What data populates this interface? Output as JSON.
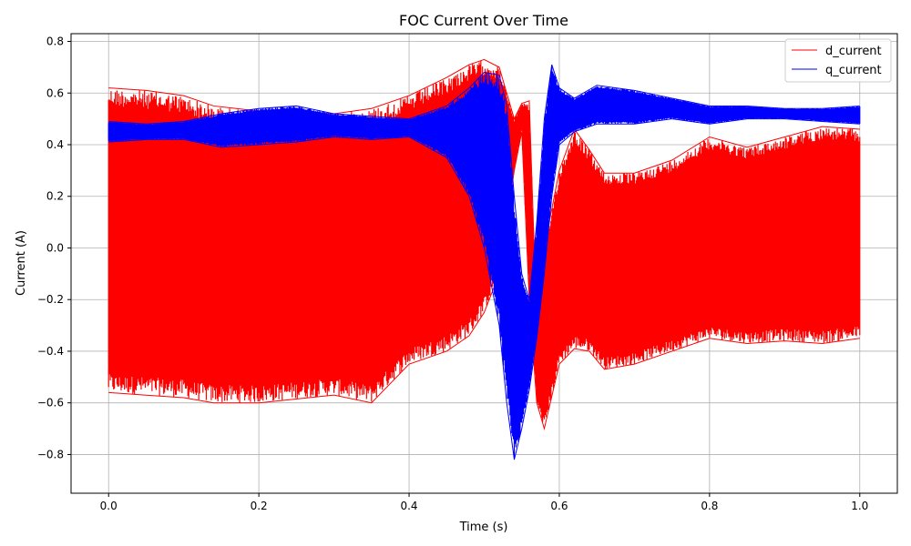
{
  "chart_data": {
    "type": "line",
    "title": "FOC Current Over Time",
    "xlabel": "Time (s)",
    "ylabel": "Current (A)",
    "xlim": [
      -0.05,
      1.05
    ],
    "ylim": [
      -0.95,
      0.83
    ],
    "xticks": [
      0.0,
      0.2,
      0.4,
      0.6,
      0.8,
      1.0
    ],
    "xtick_labels": [
      "0.0",
      "0.2",
      "0.4",
      "0.6",
      "0.8",
      "1.0"
    ],
    "yticks": [
      -0.8,
      -0.6,
      -0.4,
      -0.2,
      0.0,
      0.2,
      0.4,
      0.6,
      0.8
    ],
    "ytick_labels": [
      "−0.8",
      "−0.6",
      "−0.4",
      "−0.2",
      "0.0",
      "0.2",
      "0.4",
      "0.6",
      "0.8"
    ],
    "grid": true,
    "legend_position": "top-right",
    "series": [
      {
        "name": "d_current",
        "color": "#ff0000",
        "envelope_x": [
          0.0,
          0.05,
          0.1,
          0.14,
          0.2,
          0.3,
          0.35,
          0.4,
          0.45,
          0.48,
          0.5,
          0.52,
          0.54,
          0.55,
          0.56,
          0.57,
          0.58,
          0.6,
          0.62,
          0.64,
          0.66,
          0.7,
          0.75,
          0.8,
          0.85,
          0.9,
          0.95,
          1.0
        ],
        "envelope_upper": [
          0.62,
          0.61,
          0.59,
          0.55,
          0.53,
          0.52,
          0.54,
          0.59,
          0.66,
          0.71,
          0.73,
          0.7,
          0.5,
          0.56,
          0.57,
          -0.3,
          0.0,
          0.3,
          0.46,
          0.38,
          0.29,
          0.29,
          0.34,
          0.43,
          0.39,
          0.43,
          0.47,
          0.46
        ],
        "envelope_lower": [
          -0.56,
          -0.57,
          -0.58,
          -0.6,
          -0.6,
          -0.57,
          -0.6,
          -0.45,
          -0.4,
          -0.34,
          -0.25,
          -0.1,
          0.3,
          0.45,
          -0.2,
          -0.6,
          -0.7,
          -0.45,
          -0.39,
          -0.4,
          -0.47,
          -0.45,
          -0.4,
          -0.35,
          -0.37,
          -0.36,
          -0.37,
          -0.35
        ]
      },
      {
        "name": "q_current",
        "color": "#0000ff",
        "envelope_x": [
          0.0,
          0.05,
          0.1,
          0.15,
          0.2,
          0.25,
          0.3,
          0.35,
          0.4,
          0.45,
          0.48,
          0.5,
          0.52,
          0.53,
          0.54,
          0.55,
          0.56,
          0.57,
          0.58,
          0.59,
          0.6,
          0.62,
          0.65,
          0.7,
          0.75,
          0.8,
          0.85,
          0.9,
          0.95,
          1.0
        ],
        "envelope_upper": [
          0.49,
          0.48,
          0.49,
          0.52,
          0.54,
          0.55,
          0.52,
          0.51,
          0.5,
          0.55,
          0.62,
          0.68,
          0.67,
          0.55,
          0.2,
          -0.1,
          -0.2,
          0.1,
          0.5,
          0.71,
          0.62,
          0.58,
          0.63,
          0.61,
          0.58,
          0.55,
          0.55,
          0.54,
          0.54,
          0.55
        ],
        "envelope_lower": [
          0.41,
          0.42,
          0.42,
          0.39,
          0.4,
          0.41,
          0.43,
          0.42,
          0.43,
          0.35,
          0.2,
          0.0,
          -0.3,
          -0.6,
          -0.82,
          -0.7,
          -0.55,
          -0.35,
          -0.1,
          0.2,
          0.4,
          0.45,
          0.48,
          0.48,
          0.5,
          0.48,
          0.5,
          0.5,
          0.49,
          0.48
        ]
      }
    ]
  }
}
